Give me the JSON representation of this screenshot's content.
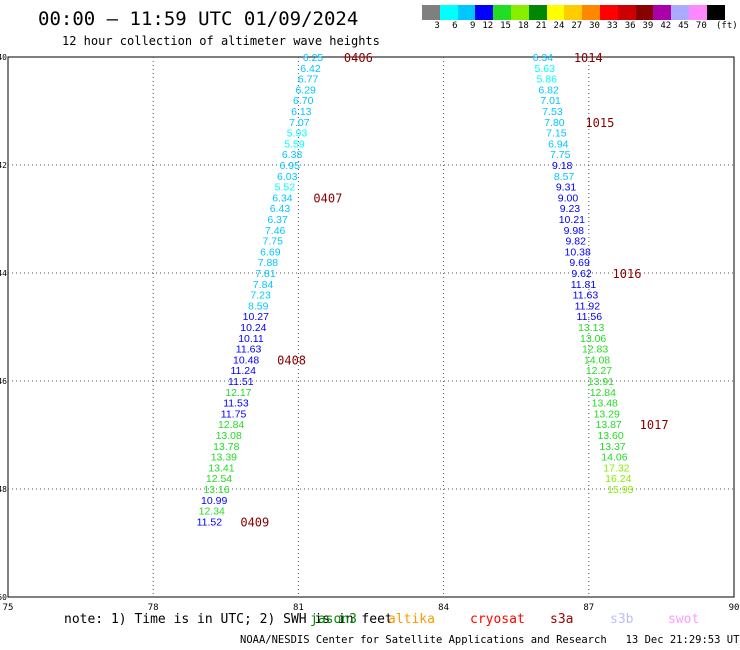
{
  "header": {
    "title": "00:00 – 11:59 UTC 01/09/2024",
    "subtitle": "12 hour collection of altimeter wave heights"
  },
  "colorbar": {
    "colors": [
      "#7f7f7f",
      "#00ffff",
      "#00c8ff",
      "#0000ff",
      "#22dd22",
      "#88ee00",
      "#008800",
      "#ffff00",
      "#ffcc00",
      "#ff8800",
      "#ff0000",
      "#cc0000",
      "#880000",
      "#aa00aa",
      "#aaaaff",
      "#ff88ff",
      "#000000"
    ],
    "labels": [
      "3",
      "6",
      "9",
      "12",
      "15",
      "18",
      "21",
      "24",
      "27",
      "30",
      "33",
      "36",
      "39",
      "42",
      "45",
      "70"
    ],
    "unit": "(ft)"
  },
  "chart_data": {
    "type": "scatter",
    "xlim": [
      75,
      90
    ],
    "ylim": [
      -50,
      -40
    ],
    "x_ticks": [
      "75",
      "78",
      "81",
      "84",
      "87",
      "90"
    ],
    "y_ticks": [
      "-40",
      "-42",
      "-44",
      "-46",
      "-48",
      "-50"
    ],
    "grid": true,
    "color_scale": {
      "steps": [
        3,
        6,
        9,
        12,
        15,
        18,
        21,
        24,
        27,
        30,
        33,
        36,
        39,
        42,
        45,
        70
      ]
    },
    "series": [
      {
        "points": [
          {
            "x": 81.3,
            "y": -40.0,
            "v": "6.25"
          },
          {
            "x": 81.25,
            "y": -40.2,
            "v": "6.42"
          },
          {
            "x": 81.2,
            "y": -40.4,
            "v": "6.77"
          },
          {
            "x": 81.15,
            "y": -40.6,
            "v": "6.29"
          },
          {
            "x": 81.1,
            "y": -40.8,
            "v": "6.70"
          },
          {
            "x": 81.06,
            "y": -41.0,
            "v": "6.13"
          },
          {
            "x": 81.02,
            "y": -41.2,
            "v": "7.07"
          },
          {
            "x": 80.97,
            "y": -41.4,
            "v": "5.93"
          },
          {
            "x": 80.92,
            "y": -41.6,
            "v": "5.59"
          },
          {
            "x": 80.87,
            "y": -41.8,
            "v": "6.38"
          },
          {
            "x": 80.82,
            "y": -42.0,
            "v": "6.95"
          },
          {
            "x": 80.77,
            "y": -42.2,
            "v": "6.03"
          },
          {
            "x": 80.72,
            "y": -42.4,
            "v": "5.52"
          },
          {
            "x": 80.67,
            "y": -42.6,
            "v": "6.34"
          },
          {
            "x": 80.62,
            "y": -42.8,
            "v": "6.43"
          },
          {
            "x": 80.57,
            "y": -43.0,
            "v": "6.37"
          },
          {
            "x": 80.52,
            "y": -43.2,
            "v": "7.46"
          },
          {
            "x": 80.47,
            "y": -43.4,
            "v": "7.75"
          },
          {
            "x": 80.42,
            "y": -43.6,
            "v": "6.69"
          },
          {
            "x": 80.37,
            "y": -43.8,
            "v": "7.88"
          },
          {
            "x": 80.32,
            "y": -44.0,
            "v": "7.81"
          },
          {
            "x": 80.27,
            "y": -44.2,
            "v": "7.84"
          },
          {
            "x": 80.22,
            "y": -44.4,
            "v": "7.23"
          },
          {
            "x": 80.17,
            "y": -44.6,
            "v": "8.59"
          },
          {
            "x": 80.12,
            "y": -44.8,
            "v": "10.27"
          },
          {
            "x": 80.07,
            "y": -45.0,
            "v": "10.24"
          },
          {
            "x": 80.02,
            "y": -45.2,
            "v": "10.11"
          },
          {
            "x": 79.97,
            "y": -45.4,
            "v": "11.63"
          },
          {
            "x": 79.92,
            "y": -45.6,
            "v": "10.48"
          },
          {
            "x": 79.86,
            "y": -45.8,
            "v": "11.24"
          },
          {
            "x": 79.81,
            "y": -46.0,
            "v": "11.51"
          },
          {
            "x": 79.76,
            "y": -46.2,
            "v": "12.17"
          },
          {
            "x": 79.71,
            "y": -46.4,
            "v": "11.53"
          },
          {
            "x": 79.66,
            "y": -46.6,
            "v": "11.75"
          },
          {
            "x": 79.61,
            "y": -46.8,
            "v": "12.84"
          },
          {
            "x": 79.56,
            "y": -47.0,
            "v": "13.08"
          },
          {
            "x": 79.51,
            "y": -47.2,
            "v": "13.78"
          },
          {
            "x": 79.46,
            "y": -47.4,
            "v": "13.39"
          },
          {
            "x": 79.41,
            "y": -47.6,
            "v": "13.41"
          },
          {
            "x": 79.36,
            "y": -47.8,
            "v": "12.54"
          },
          {
            "x": 79.31,
            "y": -48.0,
            "v": "13.16"
          },
          {
            "x": 79.26,
            "y": -48.2,
            "v": "10.99"
          },
          {
            "x": 79.21,
            "y": -48.4,
            "v": "12.34"
          },
          {
            "x": 79.16,
            "y": -48.6,
            "v": "11.52"
          }
        ],
        "time_labels": [
          {
            "text": "0406",
            "x": 81.3,
            "y": -40.0
          },
          {
            "text": "0407",
            "x": 80.67,
            "y": -42.6
          },
          {
            "text": "0408",
            "x": 79.92,
            "y": -45.6
          },
          {
            "text": "0409",
            "x": 79.16,
            "y": -48.6
          }
        ]
      },
      {
        "points": [
          {
            "x": 86.05,
            "y": -40.0,
            "v": "6.34"
          },
          {
            "x": 86.09,
            "y": -40.2,
            "v": "5.63"
          },
          {
            "x": 86.13,
            "y": -40.4,
            "v": "5.86"
          },
          {
            "x": 86.17,
            "y": -40.6,
            "v": "6.82"
          },
          {
            "x": 86.21,
            "y": -40.8,
            "v": "7.01"
          },
          {
            "x": 86.25,
            "y": -41.0,
            "v": "7.53"
          },
          {
            "x": 86.29,
            "y": -41.2,
            "v": "7.80"
          },
          {
            "x": 86.33,
            "y": -41.4,
            "v": "7.15"
          },
          {
            "x": 86.37,
            "y": -41.6,
            "v": "6.94"
          },
          {
            "x": 86.41,
            "y": -41.8,
            "v": "7.75"
          },
          {
            "x": 86.45,
            "y": -42.0,
            "v": "9.18"
          },
          {
            "x": 86.49,
            "y": -42.2,
            "v": "8.57"
          },
          {
            "x": 86.53,
            "y": -42.4,
            "v": "9.31"
          },
          {
            "x": 86.57,
            "y": -42.6,
            "v": "9.00"
          },
          {
            "x": 86.61,
            "y": -42.8,
            "v": "9.23"
          },
          {
            "x": 86.65,
            "y": -43.0,
            "v": "10.21"
          },
          {
            "x": 86.69,
            "y": -43.2,
            "v": "9.98"
          },
          {
            "x": 86.73,
            "y": -43.4,
            "v": "9.82"
          },
          {
            "x": 86.77,
            "y": -43.6,
            "v": "10.38"
          },
          {
            "x": 86.81,
            "y": -43.8,
            "v": "9.69"
          },
          {
            "x": 86.85,
            "y": -44.0,
            "v": "9.62"
          },
          {
            "x": 86.89,
            "y": -44.2,
            "v": "11.81"
          },
          {
            "x": 86.93,
            "y": -44.4,
            "v": "11.63"
          },
          {
            "x": 86.97,
            "y": -44.6,
            "v": "11.92"
          },
          {
            "x": 87.01,
            "y": -44.8,
            "v": "11.56"
          },
          {
            "x": 87.05,
            "y": -45.0,
            "v": "13.13"
          },
          {
            "x": 87.09,
            "y": -45.2,
            "v": "13.06"
          },
          {
            "x": 87.13,
            "y": -45.4,
            "v": "12.83"
          },
          {
            "x": 87.17,
            "y": -45.6,
            "v": "14.08"
          },
          {
            "x": 87.21,
            "y": -45.8,
            "v": "12.27"
          },
          {
            "x": 87.25,
            "y": -46.0,
            "v": "13.91"
          },
          {
            "x": 87.29,
            "y": -46.2,
            "v": "12.84"
          },
          {
            "x": 87.33,
            "y": -46.4,
            "v": "13.48"
          },
          {
            "x": 87.37,
            "y": -46.6,
            "v": "13.29"
          },
          {
            "x": 87.41,
            "y": -46.8,
            "v": "13.87"
          },
          {
            "x": 87.45,
            "y": -47.0,
            "v": "13.60"
          },
          {
            "x": 87.49,
            "y": -47.2,
            "v": "13.37"
          },
          {
            "x": 87.53,
            "y": -47.4,
            "v": "14.06"
          },
          {
            "x": 87.57,
            "y": -47.6,
            "v": "17.32"
          },
          {
            "x": 87.61,
            "y": -47.8,
            "v": "16.24"
          },
          {
            "x": 87.65,
            "y": -48.0,
            "v": "15.93"
          }
        ],
        "time_labels": [
          {
            "text": "1014",
            "x": 86.05,
            "y": -40.0
          },
          {
            "text": "1015",
            "x": 86.29,
            "y": -41.2
          },
          {
            "text": "1016",
            "x": 86.85,
            "y": -44.0
          },
          {
            "text": "1017",
            "x": 87.41,
            "y": -46.8
          }
        ]
      }
    ]
  },
  "note": "note: 1) Time is in UTC; 2) SWH is in feet",
  "satellites": [
    {
      "name": "jason3",
      "color": "#008800"
    },
    {
      "name": "altika",
      "color": "#ff9900"
    },
    {
      "name": "cryosat",
      "color": "#ff0000"
    },
    {
      "name": "s3a",
      "color": "#990000"
    },
    {
      "name": "s3b",
      "color": "#bbbbff"
    },
    {
      "name": "swot",
      "color": "#ff99ff"
    }
  ],
  "footer": "NOAA/NESDIS Center for Satellite Applications and Research   13 Dec 21:29:53 UTC 2024"
}
